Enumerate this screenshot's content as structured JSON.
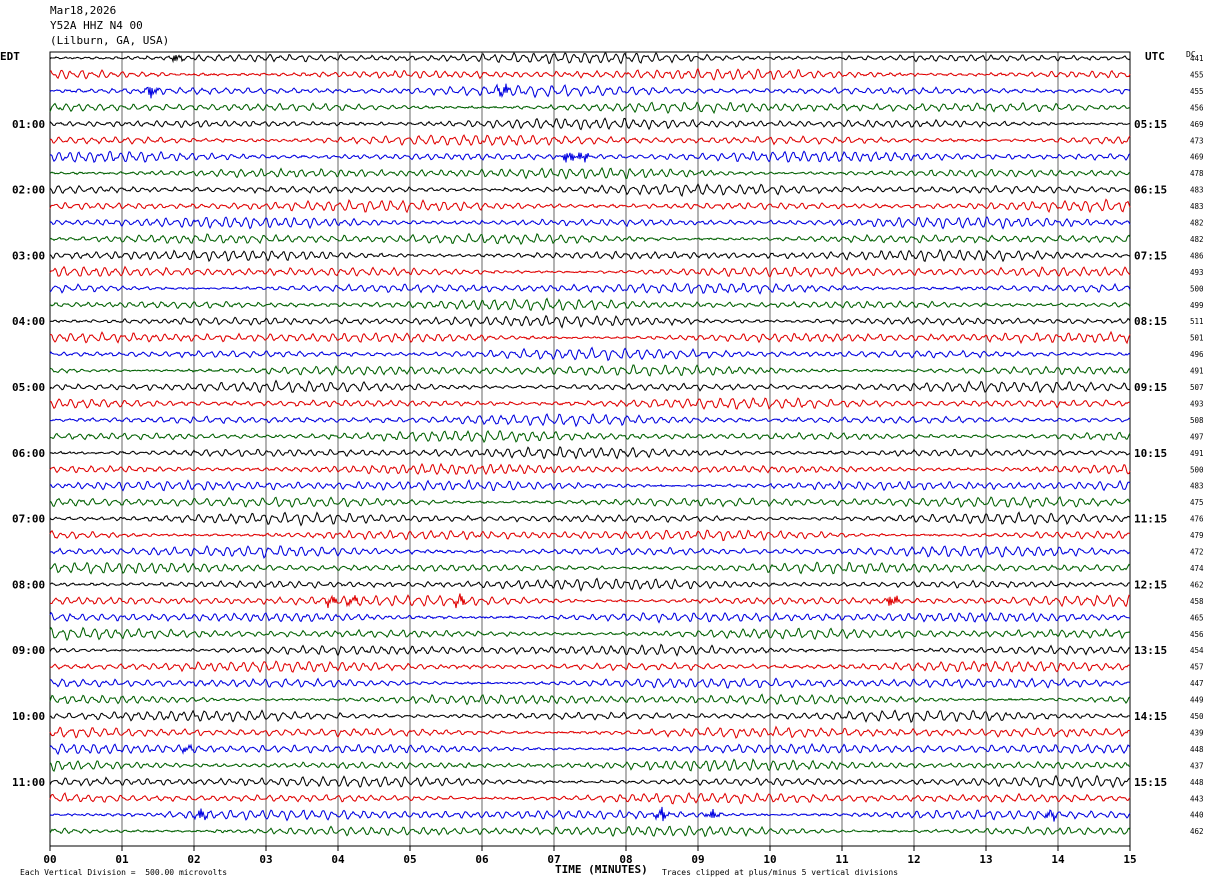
{
  "header": {
    "date": "Mar18,2026",
    "station": "Y52A HHZ N4 00",
    "location": "(Lilburn, GA, USA)"
  },
  "left_timezone": "EDT",
  "right_timezone": "UTC",
  "dc_label": "DC",
  "footer": {
    "scale_note": "Each Vertical Division =  500.00 microvolts",
    "clip_note": "Traces clipped at plus/minus 5 vertical divisions"
  },
  "colors": {
    "trace_cycle": [
      "#000000",
      "#e00000",
      "#0000e0",
      "#006000"
    ],
    "grid": "#000000",
    "background": "#ffffff"
  },
  "chart_data": {
    "type": "line",
    "description_kind": "helicorder",
    "xlabel": "TIME (MINUTES)",
    "xlim": [
      0,
      15
    ],
    "x_ticks": [
      "00",
      "01",
      "02",
      "03",
      "04",
      "05",
      "06",
      "07",
      "08",
      "09",
      "10",
      "11",
      "12",
      "13",
      "14",
      "15"
    ],
    "left_hour_labels": [
      "01:00",
      "02:00",
      "03:00",
      "04:00",
      "05:00",
      "06:00",
      "07:00",
      "08:00",
      "09:00",
      "10:00",
      "11:00"
    ],
    "right_hour_labels": [
      "05:15",
      "06:15",
      "07:15",
      "08:15",
      "09:15",
      "10:15",
      "11:15",
      "12:15",
      "13:15",
      "14:15",
      "15:15"
    ],
    "traces_per_hour": 4,
    "trace_count": 48,
    "dc_offsets": [
      441,
      455,
      455,
      456,
      469,
      473,
      469,
      478,
      483,
      483,
      482,
      482,
      486,
      493,
      500,
      499,
      511,
      501,
      496,
      491,
      507,
      493,
      508,
      497,
      491,
      500,
      483,
      475,
      476,
      479,
      472,
      474,
      462,
      458,
      465,
      456,
      454,
      457,
      447,
      449,
      450,
      439,
      448,
      437,
      448,
      443,
      440,
      462
    ],
    "events": [
      {
        "trace": 0,
        "minute": 1.75,
        "strength": 0.6
      },
      {
        "trace": 2,
        "minute": 1.4,
        "strength": 1.0
      },
      {
        "trace": 2,
        "minute": 6.3,
        "strength": 1.0
      },
      {
        "trace": 6,
        "minute": 7.2,
        "strength": 1.0
      },
      {
        "trace": 6,
        "minute": 7.4,
        "strength": 0.9
      },
      {
        "trace": 33,
        "minute": 3.9,
        "strength": 0.8
      },
      {
        "trace": 33,
        "minute": 4.2,
        "strength": 0.7
      },
      {
        "trace": 33,
        "minute": 5.7,
        "strength": 0.9
      },
      {
        "trace": 33,
        "minute": 11.7,
        "strength": 1.0
      },
      {
        "trace": 42,
        "minute": 1.9,
        "strength": 0.5
      },
      {
        "trace": 46,
        "minute": 2.1,
        "strength": 0.9
      },
      {
        "trace": 46,
        "minute": 8.5,
        "strength": 1.0
      },
      {
        "trace": 46,
        "minute": 9.2,
        "strength": 0.8
      },
      {
        "trace": 46,
        "minute": 13.9,
        "strength": 0.7
      }
    ]
  }
}
